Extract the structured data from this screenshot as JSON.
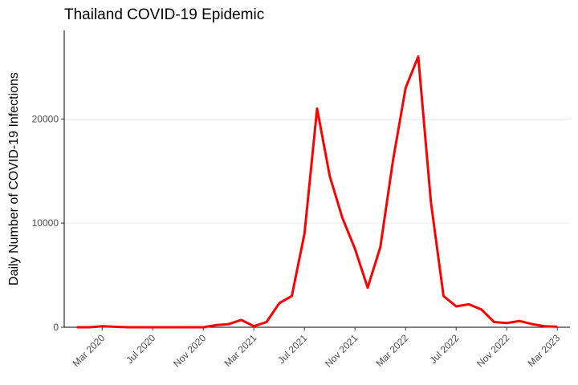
{
  "chart_data": {
    "type": "line",
    "title": "Thailand COVID-19 Epidemic",
    "y_label": "Daily Number of COVID-19 Infections",
    "x": [
      "2020-01",
      "2020-02",
      "2020-03",
      "2020-04",
      "2020-05",
      "2020-06",
      "2020-07",
      "2020-08",
      "2020-09",
      "2020-10",
      "2020-11",
      "2020-12",
      "2021-01",
      "2021-02",
      "2021-03",
      "2021-04",
      "2021-05",
      "2021-06",
      "2021-07",
      "2021-08",
      "2021-09",
      "2021-10",
      "2021-11",
      "2021-12",
      "2022-01",
      "2022-02",
      "2022-03",
      "2022-04",
      "2022-05",
      "2022-06",
      "2022-07",
      "2022-08",
      "2022-09",
      "2022-10",
      "2022-11",
      "2022-12",
      "2023-01",
      "2023-02",
      "2023-03"
    ],
    "series": [
      {
        "name": "Daily Number of COVID-19 Infections",
        "color": "#ff0000",
        "values": [
          0,
          0,
          100,
          50,
          0,
          0,
          0,
          0,
          0,
          0,
          0,
          200,
          300,
          700,
          100,
          500,
          2300,
          3000,
          9000,
          21000,
          14500,
          10500,
          7500,
          3800,
          7700,
          16000,
          23000,
          26000,
          12000,
          3000,
          2000,
          2200,
          1700,
          500,
          400,
          600,
          300,
          100,
          50
        ]
      }
    ],
    "xlim": [
      "2019-12",
      "2023-04"
    ],
    "xticks": [
      {
        "value": "2020-03",
        "label": "Mar 2020"
      },
      {
        "value": "2020-07",
        "label": "Jul 2020"
      },
      {
        "value": "2020-11",
        "label": "Nov 2020"
      },
      {
        "value": "2021-03",
        "label": "Mar 2021"
      },
      {
        "value": "2021-07",
        "label": "Jul 2021"
      },
      {
        "value": "2021-11",
        "label": "Nov 2021"
      },
      {
        "value": "2022-03",
        "label": "Mar 2022"
      },
      {
        "value": "2022-07",
        "label": "Jul 2022"
      },
      {
        "value": "2022-11",
        "label": "Nov 2022"
      },
      {
        "value": "2023-03",
        "label": "Mar 2023"
      }
    ],
    "ylim": [
      0,
      28500
    ],
    "yticks": [
      0,
      10000,
      20000
    ],
    "grid": true
  }
}
